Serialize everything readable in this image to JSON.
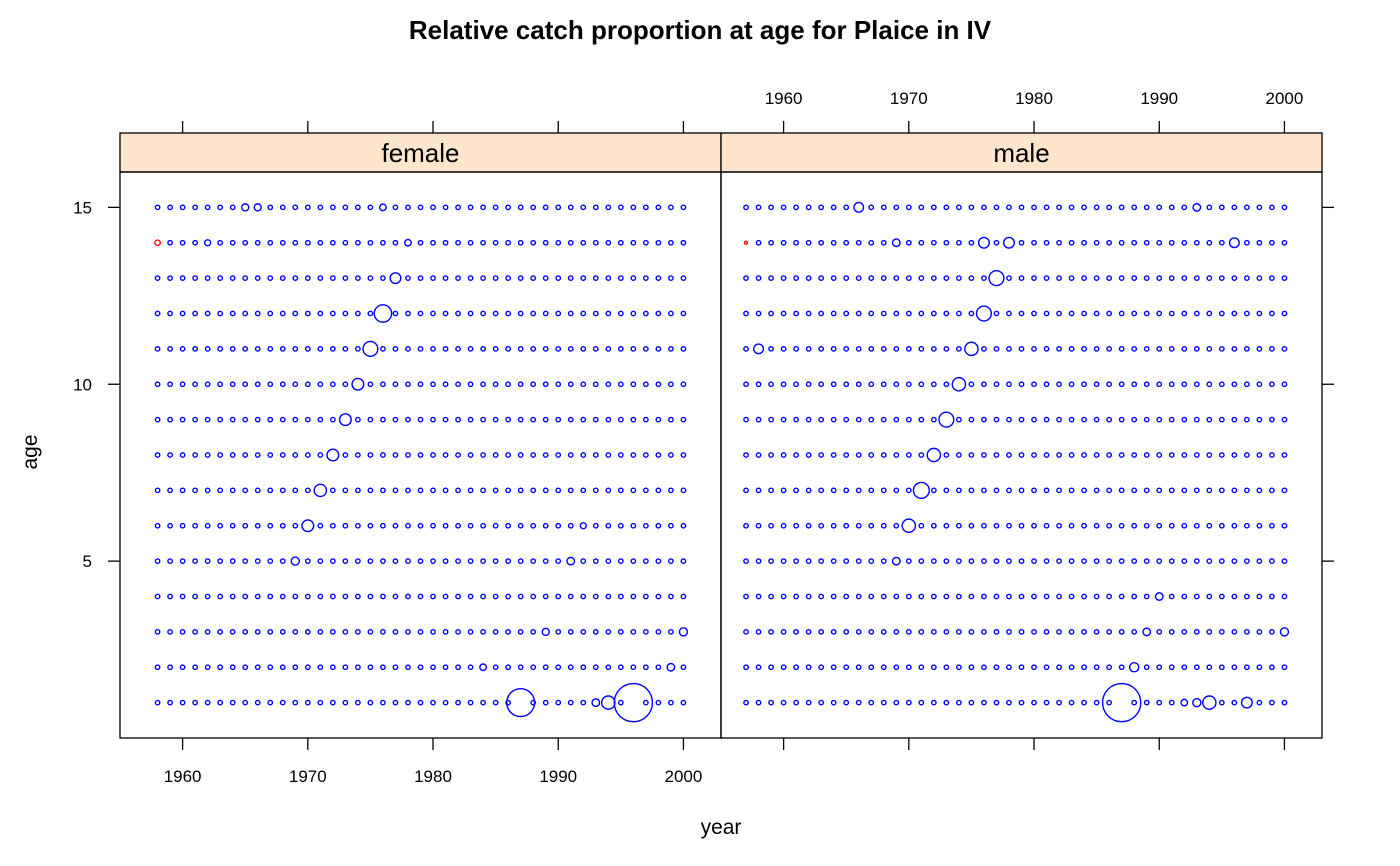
{
  "colors": {
    "point": "#0000ff",
    "highlight": "#ff0000",
    "strip": "#ffe5cc",
    "frame": "#000000"
  },
  "chart_data": {
    "type": "scatter",
    "title": "Relative catch proportion at age for Plaice in IV",
    "xlabel": "year",
    "ylabel": "age",
    "xlim": [
      1955,
      2003
    ],
    "ylim": [
      0,
      16
    ],
    "x_ticks": [
      "1960",
      "1970",
      "1980",
      "1990",
      "2000"
    ],
    "y_ticks": [
      "5",
      "10",
      "15"
    ],
    "encoding": "marker size proportional to relative catch proportion",
    "panels": [
      {
        "name": "female",
        "years": [
          1958,
          2000
        ],
        "ages": [
          1,
          15
        ],
        "default_size": 1,
        "special_points": [
          {
            "year": 1958,
            "age": 14,
            "size": 1.2,
            "color": "red"
          },
          {
            "year": 1965,
            "age": 15,
            "size": 1.5
          },
          {
            "year": 1966,
            "age": 15,
            "size": 1.5
          },
          {
            "year": 1976,
            "age": 15,
            "size": 1.4
          },
          {
            "year": 1962,
            "age": 14,
            "size": 1.3
          },
          {
            "year": 1978,
            "age": 14,
            "size": 1.4
          },
          {
            "year": 1977,
            "age": 13,
            "size": 2.2
          },
          {
            "year": 1976,
            "age": 12,
            "size": 3.5
          },
          {
            "year": 1975,
            "age": 11,
            "size": 3.0
          },
          {
            "year": 1974,
            "age": 10,
            "size": 2.4
          },
          {
            "year": 1973,
            "age": 9,
            "size": 2.4
          },
          {
            "year": 1972,
            "age": 8,
            "size": 2.4
          },
          {
            "year": 1971,
            "age": 7,
            "size": 2.5
          },
          {
            "year": 1970,
            "age": 6,
            "size": 2.4
          },
          {
            "year": 1969,
            "age": 5,
            "size": 1.7
          },
          {
            "year": 1991,
            "age": 5,
            "size": 1.6
          },
          {
            "year": 1992,
            "age": 6,
            "size": 1.3
          },
          {
            "year": 1984,
            "age": 2,
            "size": 1.4
          },
          {
            "year": 1989,
            "age": 3,
            "size": 1.5
          },
          {
            "year": 2000,
            "age": 3,
            "size": 1.7
          },
          {
            "year": 1999,
            "age": 2,
            "size": 1.6
          },
          {
            "year": 1987,
            "age": 1,
            "size": 5.5
          },
          {
            "year": 1993,
            "age": 1,
            "size": 1.6
          },
          {
            "year": 1994,
            "age": 1,
            "size": 2.7
          },
          {
            "year": 1996,
            "age": 1,
            "size": 7.5
          },
          {
            "year": 1995,
            "age": 1,
            "size": 1.0
          }
        ]
      },
      {
        "name": "male",
        "years": [
          1957,
          2000
        ],
        "ages": [
          1,
          15
        ],
        "default_size": 1,
        "special_points": [
          {
            "year": 1957,
            "age": 14,
            "size": 0.7,
            "color": "red"
          },
          {
            "year": 1966,
            "age": 15,
            "size": 2.0
          },
          {
            "year": 1993,
            "age": 15,
            "size": 1.6
          },
          {
            "year": 1969,
            "age": 14,
            "size": 1.6
          },
          {
            "year": 1976,
            "age": 14,
            "size": 2.2
          },
          {
            "year": 1978,
            "age": 14,
            "size": 2.2
          },
          {
            "year": 1996,
            "age": 14,
            "size": 2.0
          },
          {
            "year": 1977,
            "age": 13,
            "size": 3.0
          },
          {
            "year": 1976,
            "age": 12,
            "size": 3.0
          },
          {
            "year": 1958,
            "age": 11,
            "size": 2.0
          },
          {
            "year": 1975,
            "age": 11,
            "size": 2.7
          },
          {
            "year": 1974,
            "age": 10,
            "size": 2.7
          },
          {
            "year": 1973,
            "age": 9,
            "size": 3.0
          },
          {
            "year": 1972,
            "age": 8,
            "size": 2.7
          },
          {
            "year": 1971,
            "age": 7,
            "size": 3.2
          },
          {
            "year": 1970,
            "age": 6,
            "size": 2.7
          },
          {
            "year": 1969,
            "age": 5,
            "size": 1.6
          },
          {
            "year": 1990,
            "age": 4,
            "size": 1.6
          },
          {
            "year": 1989,
            "age": 3,
            "size": 1.6
          },
          {
            "year": 2000,
            "age": 3,
            "size": 1.7
          },
          {
            "year": 1988,
            "age": 2,
            "size": 1.9
          },
          {
            "year": 1987,
            "age": 1,
            "size": 7.5
          },
          {
            "year": 1992,
            "age": 1,
            "size": 1.4
          },
          {
            "year": 1993,
            "age": 1,
            "size": 1.7
          },
          {
            "year": 1994,
            "age": 1,
            "size": 2.7
          },
          {
            "year": 1997,
            "age": 1,
            "size": 2.2
          }
        ]
      }
    ]
  }
}
